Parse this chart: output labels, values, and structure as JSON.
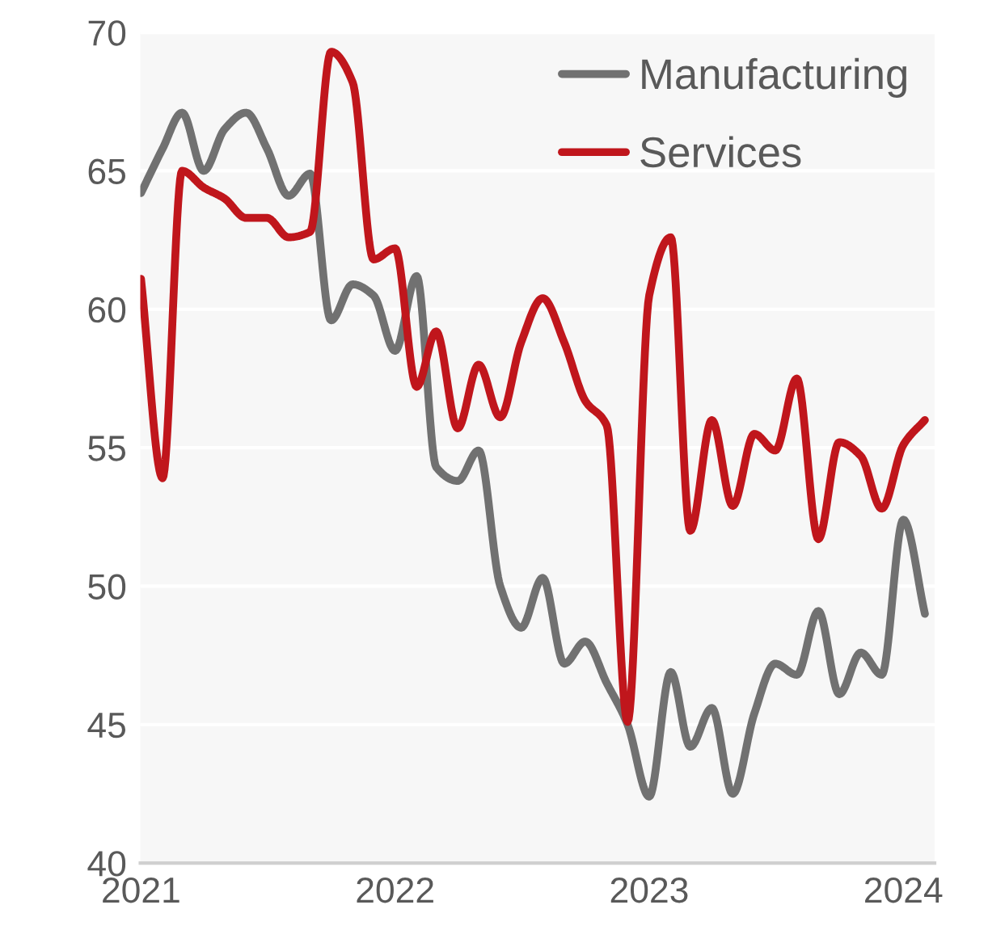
{
  "chart_data": {
    "type": "line",
    "x": [
      "2021-01",
      "2021-02",
      "2021-03",
      "2021-04",
      "2021-05",
      "2021-06",
      "2021-07",
      "2021-08",
      "2021-09",
      "2021-10",
      "2021-11",
      "2021-12",
      "2022-01",
      "2022-02",
      "2022-03",
      "2022-04",
      "2022-05",
      "2022-06",
      "2022-07",
      "2022-08",
      "2022-09",
      "2022-10",
      "2022-11",
      "2022-12",
      "2023-01",
      "2023-02",
      "2023-03",
      "2023-04",
      "2023-05",
      "2023-06",
      "2023-07",
      "2023-08",
      "2023-09",
      "2023-10",
      "2023-11",
      "2023-12",
      "2024-01",
      "2024-02"
    ],
    "series": [
      {
        "name": "Manufacturing",
        "color": "#717171",
        "values": [
          64.2,
          65.8,
          67.1,
          65.0,
          66.5,
          67.1,
          65.8,
          64.1,
          64.9,
          59.6,
          60.9,
          60.5,
          58.5,
          61.2,
          54.3,
          53.8,
          54.9,
          50.0,
          48.5,
          50.3,
          47.2,
          48.0,
          46.5,
          45.0,
          42.4,
          46.9,
          44.2,
          45.6,
          42.5,
          45.4,
          47.2,
          46.8,
          49.1,
          46.1,
          47.6,
          46.8,
          52.4,
          49.0
        ]
      },
      {
        "name": "Services",
        "color": "#c0161c",
        "values": [
          61.1,
          53.9,
          65.0,
          64.4,
          64.0,
          63.3,
          63.3,
          62.6,
          62.8,
          69.3,
          68.2,
          61.8,
          62.2,
          57.2,
          59.2,
          55.7,
          58.0,
          56.1,
          58.8,
          60.4,
          58.8,
          56.7,
          55.8,
          45.1,
          60.5,
          62.6,
          52.0,
          56.0,
          52.9,
          55.5,
          54.9,
          57.5,
          51.7,
          55.2,
          54.7,
          52.8,
          55.1,
          56.0
        ]
      }
    ],
    "xlim": [
      "2020-12-31",
      "2024-02-15"
    ],
    "xticks": [
      {
        "value": "2021-01-01",
        "label": "2021"
      },
      {
        "value": "2022-01-01",
        "label": "2022"
      },
      {
        "value": "2023-01-01",
        "label": "2023"
      },
      {
        "value": "2024-01-01",
        "label": "2024"
      }
    ],
    "ylim": [
      40,
      70
    ],
    "yticks": [
      40,
      45,
      50,
      55,
      60,
      65,
      70
    ],
    "grid": "y",
    "legend": "top right",
    "marker": "none",
    "line_style": "solid"
  }
}
